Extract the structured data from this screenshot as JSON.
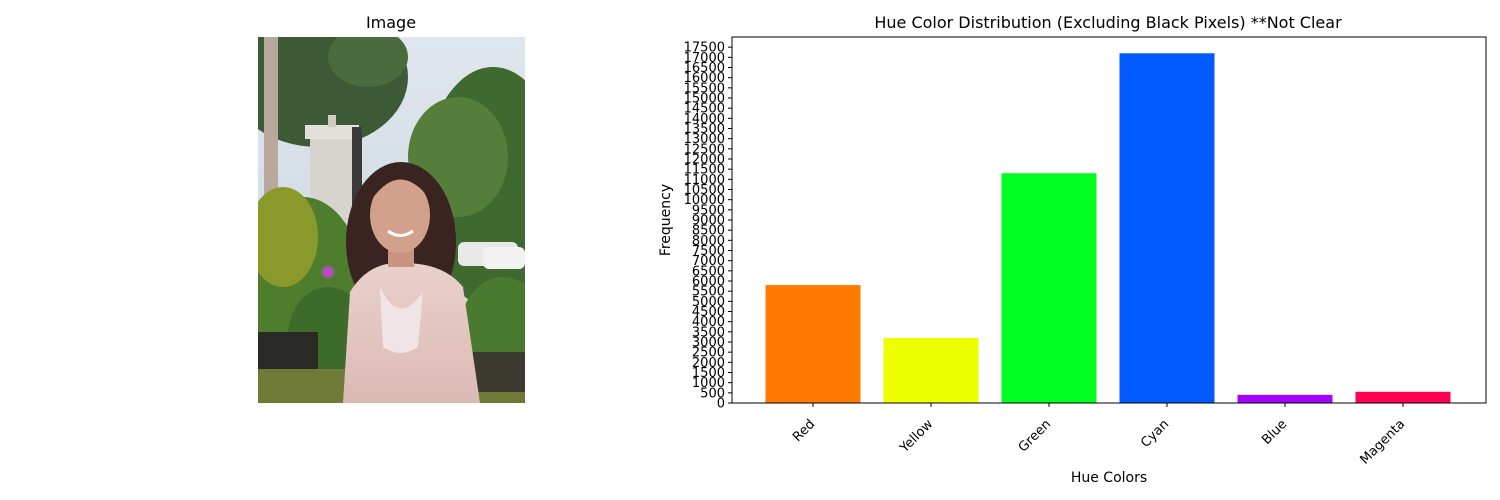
{
  "left_panel": {
    "title": "Image"
  },
  "chart_data": {
    "type": "bar",
    "title": "Hue Color Distribution (Excluding Black Pixels) **Not Clear",
    "xlabel": "Hue Colors",
    "ylabel": "Frequency",
    "categories": [
      "Red",
      "Yellow",
      "Green",
      "Cyan",
      "Blue",
      "Magenta"
    ],
    "values": [
      5800,
      3200,
      11300,
      17200,
      400,
      550
    ],
    "colors": [
      "#ff7b00",
      "#eeff00",
      "#00ff22",
      "#005aff",
      "#a600ff",
      "#ff0055"
    ],
    "ylim": [
      0,
      18000
    ],
    "yticks": [
      0,
      500,
      1000,
      1500,
      2000,
      2500,
      3000,
      3500,
      4000,
      4500,
      5000,
      5500,
      6000,
      6500,
      7000,
      7500,
      8000,
      8500,
      9000,
      9500,
      10000,
      10500,
      11000,
      11500,
      12000,
      12500,
      13000,
      13500,
      14000,
      14500,
      15000,
      15500,
      16000,
      16500,
      17000,
      17500
    ],
    "grid": false,
    "legend": false
  }
}
